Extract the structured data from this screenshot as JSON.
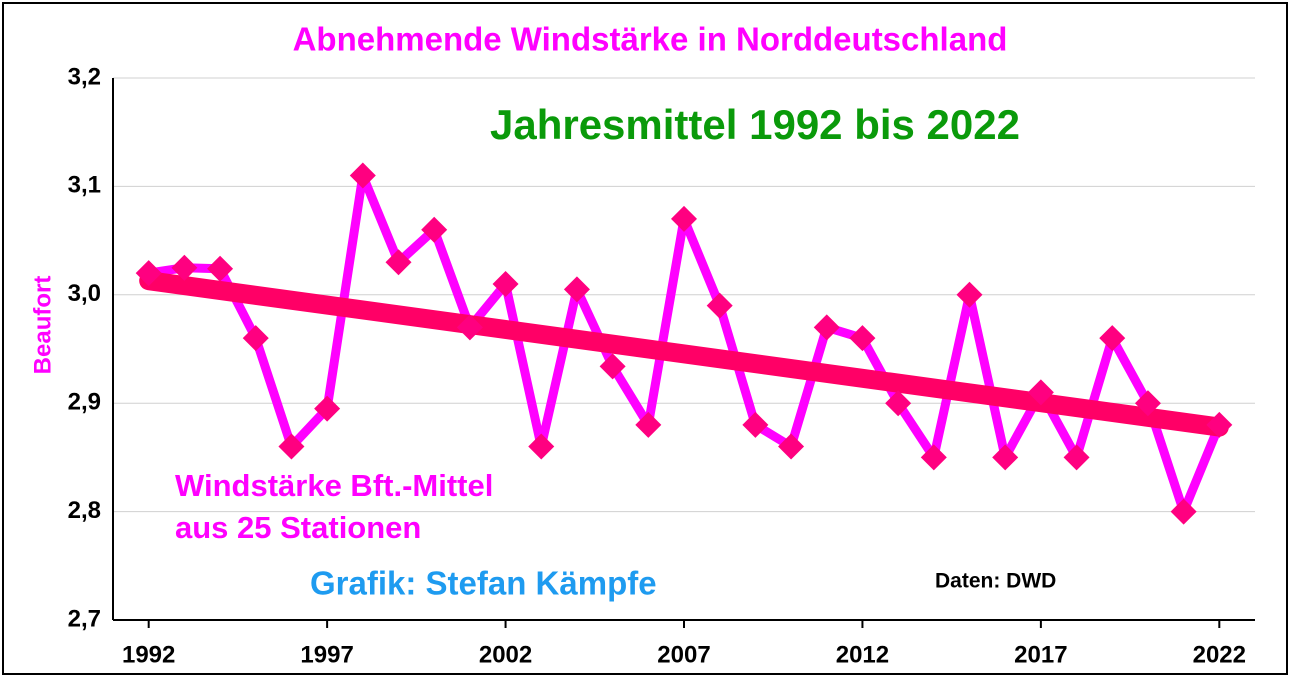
{
  "chart_data": {
    "type": "line",
    "title": "Abnehmende  Windstärke  in  Norddeutschland",
    "ylabel": "Beaufort",
    "x": [
      1992,
      1993,
      1994,
      1995,
      1996,
      1997,
      1998,
      1999,
      2000,
      2001,
      2002,
      2003,
      2004,
      2005,
      2006,
      2007,
      2008,
      2009,
      2010,
      2011,
      2012,
      2013,
      2014,
      2015,
      2016,
      2017,
      2018,
      2019,
      2020,
      2021,
      2022
    ],
    "series": [
      {
        "name": "Windstärke Bft.-Mittel",
        "color": "#ff00ff",
        "marker_color": "#ff0080",
        "values": [
          3.02,
          3.025,
          3.024,
          2.96,
          2.86,
          2.895,
          3.11,
          3.03,
          3.06,
          2.97,
          3.01,
          2.86,
          3.005,
          2.934,
          2.88,
          3.07,
          2.99,
          2.88,
          2.86,
          2.97,
          2.96,
          2.9,
          2.85,
          3.0,
          2.85,
          2.91,
          2.85,
          2.96,
          2.9,
          2.8,
          2.88
        ]
      }
    ],
    "trend": {
      "x": [
        1992,
        2022
      ],
      "values": [
        3.013,
        2.878
      ],
      "color": "#ff0066"
    },
    "xlim": [
      1991,
      2023
    ],
    "xticks": [
      1992,
      1997,
      2002,
      2007,
      2012,
      2017,
      2022
    ],
    "ylim": [
      2.7,
      3.2
    ],
    "yticks": [
      {
        "value": 2.7,
        "label": "2,7"
      },
      {
        "value": 2.8,
        "label": "2,8"
      },
      {
        "value": 2.9,
        "label": "2,9"
      },
      {
        "value": 3.0,
        "label": "3,0"
      },
      {
        "value": 3.1,
        "label": "3,1"
      },
      {
        "value": 3.2,
        "label": "3,2"
      }
    ],
    "grid": true,
    "annotations": [
      {
        "text": "Jahresmittel 1992 bis 2022",
        "color": "#0a9a0a"
      },
      {
        "text": "Windstärke Bft.-Mittel",
        "color": "#ff00ff"
      },
      {
        "text": "aus 25 Stationen",
        "color": "#ff00ff"
      },
      {
        "text": "Grafik: Stefan Kämpfe",
        "color": "#1e9bf0"
      },
      {
        "text": "Daten: DWD",
        "color": "#000000"
      }
    ]
  }
}
